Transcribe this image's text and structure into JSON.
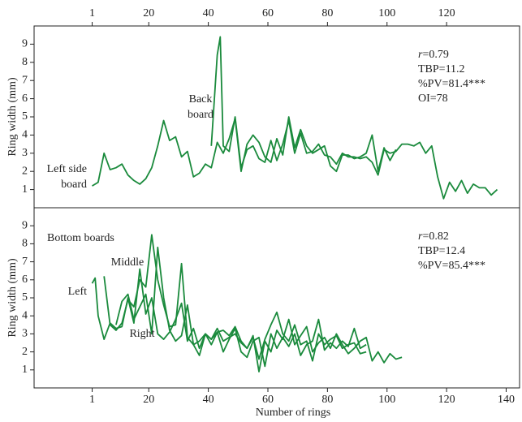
{
  "chart_data": [
    {
      "type": "line",
      "ylabel": "Ring width (mm)",
      "xaxis_position": "top",
      "xlim": [
        -18.5,
        144.5
      ],
      "xticks": [
        1,
        20,
        40,
        60,
        80,
        100,
        120
      ],
      "ylim": [
        0,
        10
      ],
      "yticks": [
        1,
        2,
        3,
        4,
        5,
        6,
        7,
        8,
        9
      ],
      "stats": [
        "r=0.79",
        "TBP=11.2",
        "%PV=81.4***",
        "OI=78"
      ],
      "series": [
        {
          "name": "Left side board",
          "color": "#1a8a3c",
          "x": [
            1,
            3,
            5,
            7,
            9,
            11,
            13,
            15,
            17,
            19,
            21,
            23,
            25,
            27,
            29,
            31,
            33,
            35,
            37,
            39,
            41,
            43,
            45,
            47,
            49,
            51,
            53,
            55,
            57,
            59,
            61,
            63,
            65,
            67,
            69,
            71,
            73,
            75,
            77,
            79,
            81,
            83,
            85,
            87,
            89,
            91,
            93,
            95,
            97,
            99,
            101,
            103
          ],
          "values": [
            1.2,
            1.4,
            3.0,
            2.1,
            2.2,
            2.4,
            1.8,
            1.5,
            1.3,
            1.6,
            2.2,
            3.4,
            4.8,
            3.7,
            3.9,
            2.8,
            3.1,
            1.7,
            1.9,
            2.4,
            2.2,
            3.6,
            3.0,
            3.8,
            4.9,
            2.0,
            3.5,
            4.0,
            3.6,
            2.8,
            2.5,
            3.8,
            2.9,
            5.0,
            3.3,
            4.3,
            3.4,
            3.0,
            3.2,
            3.4,
            2.3,
            2.0,
            2.9,
            2.9,
            2.7,
            2.8,
            3.0,
            4.0,
            2.0,
            3.3,
            2.6,
            3.2
          ]
        },
        {
          "name": "Back board",
          "color": "#1a8a3c",
          "x": [
            41,
            43,
            44,
            45,
            47,
            49,
            51,
            53,
            55,
            57,
            59,
            61,
            63,
            65,
            67,
            69,
            71,
            73,
            75,
            77,
            79,
            81,
            83,
            85,
            87,
            89,
            91,
            93,
            95,
            97,
            99,
            101,
            103,
            105,
            107,
            109,
            111,
            113,
            115,
            117,
            119,
            121,
            123,
            125,
            127,
            129,
            131,
            133,
            135,
            137
          ],
          "values": [
            3.4,
            8.4,
            9.4,
            3.4,
            3.1,
            5.0,
            2.2,
            3.2,
            3.4,
            2.7,
            2.5,
            3.7,
            2.6,
            3.5,
            4.8,
            3.0,
            4.1,
            3.0,
            3.1,
            3.5,
            2.9,
            2.8,
            2.4,
            3.0,
            2.8,
            2.8,
            2.7,
            2.8,
            2.5,
            1.8,
            3.2,
            3.0,
            3.1,
            3.5,
            3.5,
            3.4,
            3.6,
            3.0,
            3.4,
            1.7,
            0.5,
            1.4,
            0.9,
            1.5,
            0.8,
            1.3,
            1.1,
            1.1,
            0.7,
            1.0
          ]
        }
      ]
    },
    {
      "type": "line",
      "ylabel": "Ring width (mm)",
      "xlabel": "Number of rings",
      "xaxis_position": "bottom",
      "xlim": [
        -18.5,
        144.5
      ],
      "xticks": [
        1,
        20,
        40,
        60,
        80,
        100,
        120,
        140
      ],
      "ylim": [
        0,
        10
      ],
      "yticks": [
        1,
        2,
        3,
        4,
        5,
        6,
        7,
        8,
        9
      ],
      "annotation": "Bottom boards",
      "stats": [
        "r=0.82",
        "TBP=12.4",
        "%PV=85.4***"
      ],
      "series": [
        {
          "name": "Left",
          "color": "#1a8a3c",
          "x": [
            1,
            2,
            3,
            5,
            7,
            9,
            11,
            13,
            15,
            17,
            19,
            21,
            23,
            25,
            27,
            29,
            31,
            33,
            35,
            37,
            39,
            41,
            43,
            45,
            47,
            49,
            51,
            53,
            55,
            57,
            59,
            61,
            63,
            65,
            67,
            69,
            71,
            73,
            75,
            77,
            79,
            81,
            83,
            85,
            87,
            89,
            91,
            93,
            95,
            97,
            99,
            101,
            103,
            105
          ],
          "values": [
            5.8,
            6.1,
            4.0,
            2.7,
            3.6,
            3.3,
            3.4,
            5.0,
            3.6,
            6.6,
            4.1,
            5.0,
            3.0,
            2.7,
            3.1,
            3.8,
            4.7,
            2.6,
            3.3,
            2.2,
            3.0,
            2.7,
            3.3,
            2.6,
            2.8,
            3.0,
            2.5,
            2.2,
            2.9,
            0.9,
            2.6,
            2.0,
            3.2,
            2.7,
            3.8,
            2.4,
            2.9,
            3.4,
            2.0,
            2.5,
            2.8,
            2.2,
            3.0,
            2.4,
            1.9,
            2.2,
            2.6,
            2.8,
            1.5,
            2.0,
            1.4,
            1.9,
            1.6,
            1.7
          ]
        },
        {
          "name": "Middle",
          "color": "#1a8a3c",
          "x": [
            5,
            7,
            9,
            11,
            13,
            15,
            17,
            19,
            21,
            23,
            25,
            27,
            29,
            31,
            33,
            35,
            37,
            39,
            41,
            43,
            45,
            47,
            49,
            51,
            53,
            55,
            57,
            59,
            61,
            63,
            65,
            67,
            69,
            71,
            73,
            75,
            77,
            79,
            81,
            83,
            85,
            87,
            89,
            91,
            93
          ],
          "values": [
            6.2,
            3.5,
            3.2,
            3.6,
            4.9,
            4.5,
            6.0,
            5.6,
            8.5,
            6.0,
            4.6,
            3.4,
            3.5,
            6.9,
            2.8,
            2.4,
            2.6,
            3.0,
            2.7,
            3.1,
            3.2,
            2.9,
            3.4,
            2.6,
            2.2,
            2.8,
            1.6,
            2.7,
            3.5,
            4.2,
            3.0,
            2.6,
            3.5,
            2.4,
            2.6,
            1.5,
            3.0,
            2.4,
            2.7,
            2.9,
            2.2,
            2.4,
            2.5,
            1.9,
            2.0
          ]
        },
        {
          "name": "Right",
          "color": "#1a8a3c",
          "x": [
            9,
            11,
            13,
            15,
            17,
            19,
            21,
            23,
            25,
            27,
            29,
            31,
            33,
            35,
            37,
            39,
            41,
            43,
            45,
            47,
            49,
            51,
            53,
            55,
            57,
            59,
            61,
            63,
            65,
            67,
            69,
            71,
            73,
            75,
            77,
            79,
            81,
            83,
            85,
            87,
            89,
            91,
            93
          ],
          "values": [
            3.5,
            4.8,
            5.2,
            3.8,
            4.5,
            5.2,
            3.0,
            7.8,
            5.0,
            3.2,
            2.6,
            2.9,
            4.6,
            2.4,
            1.8,
            3.0,
            2.4,
            3.1,
            2.0,
            2.7,
            3.3,
            2.0,
            1.7,
            2.6,
            2.8,
            1.2,
            3.0,
            2.2,
            2.8,
            2.3,
            3.0,
            1.8,
            2.4,
            2.6,
            3.8,
            2.1,
            2.5,
            2.2,
            2.6,
            2.3,
            3.3,
            2.2,
            2.4
          ]
        }
      ]
    }
  ]
}
